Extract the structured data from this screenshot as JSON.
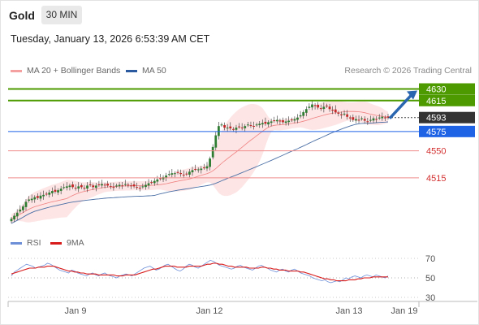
{
  "header": {
    "instrument": "Gold",
    "timeframe": "30 MIN"
  },
  "timestamp": "Tuesday, January 13, 2026 6:53:39 AM CET",
  "legend": {
    "bollinger": "MA 20 + Bollinger Bands",
    "ma50": "MA 50",
    "rsi": "RSI",
    "rsi_ma": "9MA"
  },
  "copyright": "Research © 2026 Trading Central",
  "colors": {
    "up": "#2f7d32",
    "down": "#c62828",
    "bb_fill": "#fde0e0",
    "bb_line": "#f08080",
    "ma50": "#4a6fa5",
    "resistance": "#4c9a00",
    "pivot": "#1e62e6",
    "support": "#f08c8c",
    "rsi": "#6d8fd8",
    "rsi_ma": "#d81b1b",
    "arrow": "#2a66b0"
  },
  "chart_data": [
    {
      "type": "candlestick",
      "title": "Gold",
      "x_axis_labels": [
        "Jan 9",
        "Jan 12",
        "Jan 13",
        "Jan 19"
      ],
      "ylim": [
        4455,
        4640
      ],
      "close_series": [
        4462,
        4466,
        4470,
        4474,
        4478,
        4484,
        4487,
        4488,
        4490,
        4489,
        4492,
        4493,
        4494,
        4496,
        4498,
        4497,
        4499,
        4501,
        4503,
        4504,
        4505,
        4503,
        4502,
        4504,
        4503,
        4502,
        4505,
        4506,
        4503,
        4505,
        4506,
        4507,
        4506,
        4505,
        4504,
        4503,
        4505,
        4506,
        4505,
        4507,
        4506,
        4505,
        4504,
        4503,
        4502,
        4504,
        4506,
        4508,
        4509,
        4511,
        4513,
        4514,
        4516,
        4518,
        4520,
        4521,
        4521,
        4522,
        4520,
        4519,
        4520,
        4523,
        4525,
        4526,
        4526,
        4527,
        4528,
        4530,
        4540,
        4555,
        4570,
        4582,
        4584,
        4580,
        4580,
        4579,
        4578,
        4580,
        4581,
        4580,
        4582,
        4584,
        4583,
        4582,
        4584,
        4585,
        4586,
        4585,
        4587,
        4588,
        4589,
        4590,
        4588,
        4587,
        4588,
        4589,
        4590,
        4591,
        4593,
        4596,
        4600,
        4604,
        4607,
        4610,
        4608,
        4606,
        4605,
        4607,
        4608,
        4604,
        4602,
        4600,
        4598,
        4596,
        4598,
        4594,
        4592,
        4590,
        4591,
        4590,
        4592,
        4589,
        4588,
        4590,
        4592,
        4591,
        4593,
        4594,
        4593,
        4593
      ],
      "lines": [
        {
          "name": "resistance_2",
          "value": 4630,
          "label": "4630"
        },
        {
          "name": "resistance_1",
          "value": 4615,
          "label": "4615"
        },
        {
          "name": "last_price",
          "value": 4593,
          "label": "4593"
        },
        {
          "name": "pivot",
          "value": 4575,
          "label": "4575"
        },
        {
          "name": "support_1",
          "value": 4550,
          "label": "4550"
        },
        {
          "name": "support_2",
          "value": 4515,
          "label": "4515"
        }
      ],
      "projection": {
        "from": 4593,
        "to": 4630
      }
    },
    {
      "type": "line",
      "title": "RSI",
      "ylim": [
        30,
        70
      ],
      "yticks": [
        70,
        50,
        30
      ],
      "series": [
        {
          "name": "RSI",
          "values": [
            52,
            56,
            58,
            60,
            62,
            64,
            63,
            62,
            60,
            61,
            62,
            63,
            65,
            64,
            62,
            60,
            58,
            57,
            56,
            55,
            58,
            57,
            55,
            54,
            53,
            52,
            54,
            55,
            53,
            52,
            54,
            55,
            53,
            52,
            51,
            50,
            52,
            53,
            54,
            53,
            52,
            54,
            56,
            58,
            60,
            61,
            62,
            60,
            58,
            59,
            61,
            63,
            64,
            62,
            60,
            58,
            57,
            59,
            62,
            64,
            63,
            61,
            60,
            62,
            64,
            66,
            68,
            67,
            65,
            63,
            62,
            61,
            60,
            59,
            60,
            62,
            63,
            61,
            60,
            59,
            58,
            60,
            62,
            63,
            61,
            60,
            58,
            57,
            56,
            58,
            59,
            57,
            56,
            58,
            59,
            57,
            55,
            54,
            53,
            52,
            50,
            49,
            48,
            47,
            48,
            46,
            45,
            46,
            47,
            46,
            48,
            50,
            49,
            51,
            52,
            51,
            50,
            52,
            53,
            52,
            51,
            53,
            52,
            51,
            50,
            52
          ]
        },
        {
          "name": "9MA",
          "values": [
            54,
            55,
            56,
            57,
            58,
            59,
            60,
            60,
            60,
            61,
            61,
            61,
            62,
            62,
            62,
            61,
            60,
            59,
            58,
            57,
            57,
            56,
            56,
            55,
            55,
            54,
            54,
            54,
            54,
            53,
            53,
            53,
            53,
            53,
            53,
            52,
            52,
            52,
            53,
            53,
            53,
            53,
            54,
            55,
            56,
            57,
            58,
            59,
            59,
            60,
            61,
            62,
            62,
            62,
            62,
            61,
            61,
            61,
            61,
            62,
            62,
            62,
            62,
            62,
            63,
            64,
            64,
            65,
            65,
            64,
            64,
            63,
            62,
            62,
            61,
            61,
            61,
            61,
            61,
            60,
            60,
            60,
            60,
            61,
            61,
            60,
            60,
            59,
            59,
            58,
            58,
            58,
            57,
            57,
            57,
            57,
            56,
            56,
            55,
            54,
            53,
            52,
            51,
            50,
            49,
            49,
            48,
            48,
            47,
            47,
            47,
            47,
            48,
            48,
            48,
            49,
            49,
            50,
            50,
            50,
            51,
            51,
            51,
            51,
            51,
            51
          ]
        }
      ]
    }
  ]
}
